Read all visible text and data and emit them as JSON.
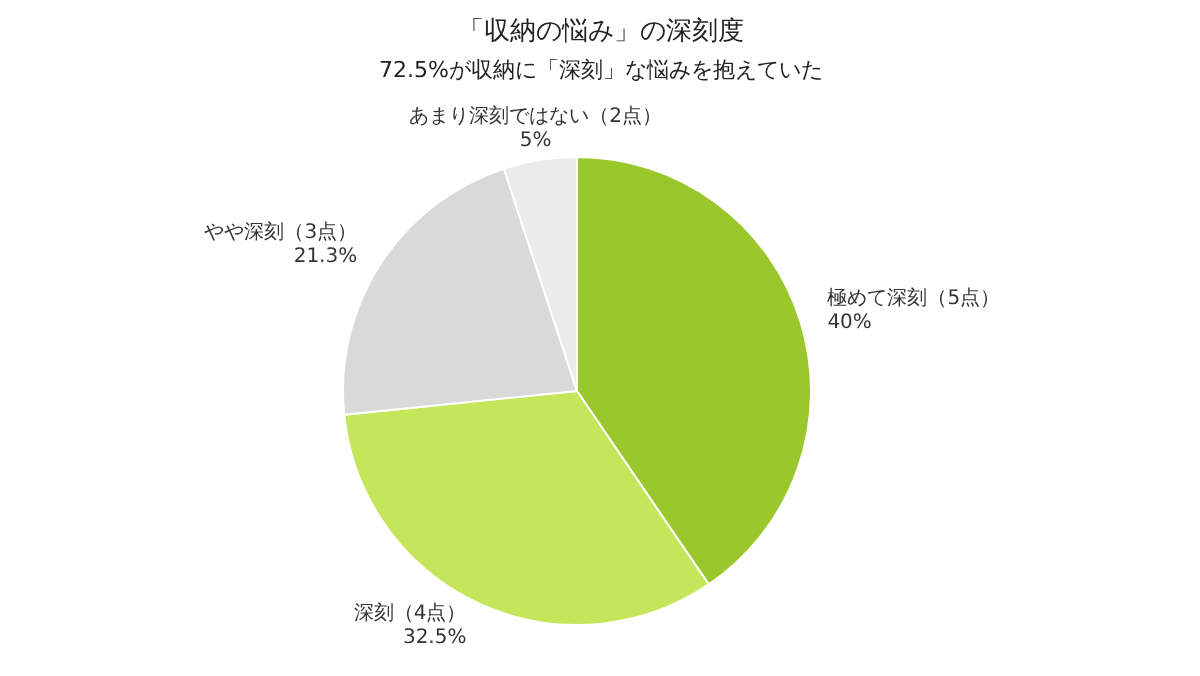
{
  "chart_data": {
    "type": "pie",
    "title": "「収納の悩み」の深刻度",
    "subtitle": "72.5%が収納に「深刻」な悩みを抱えていた",
    "categories": [
      "極めて深刻（5点）",
      "深刻（4点）",
      "やや深刻（3点）",
      "あまり深刻ではない（2点）"
    ],
    "values": [
      40,
      32.5,
      21.3,
      5
    ],
    "colors": [
      "#9ac72c",
      "#c5e65a",
      "#d9d9d9",
      "#ebebeb"
    ],
    "value_labels": [
      "40%",
      "32.5%",
      "21.3%",
      "5%"
    ]
  }
}
